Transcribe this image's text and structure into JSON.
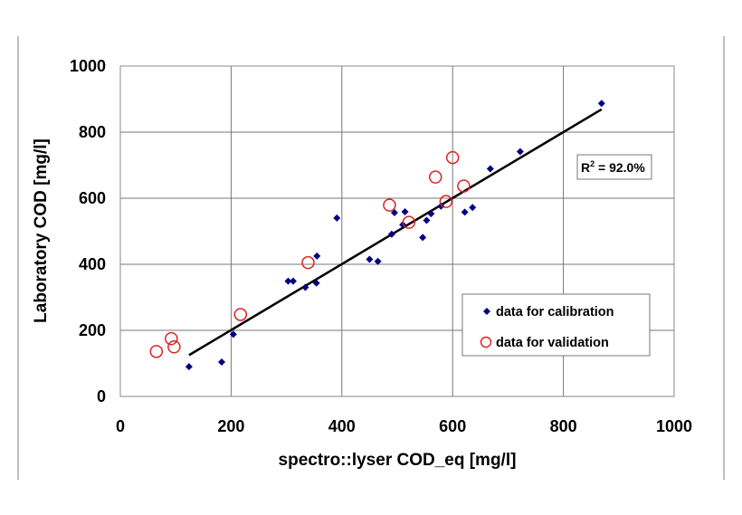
{
  "chart_data": {
    "type": "scatter",
    "title": "",
    "xlabel": "spectro::lyser COD_eq [mg/l]",
    "ylabel": "Laboratory COD [mg/l]",
    "xlim": [
      0,
      1000
    ],
    "ylim": [
      0,
      1000
    ],
    "xticks": [
      0,
      200,
      400,
      600,
      800,
      1000
    ],
    "yticks": [
      0,
      200,
      400,
      600,
      800,
      1000
    ],
    "grid": true,
    "legend_position": "bottom-right",
    "series": [
      {
        "name": "data for calibration",
        "marker": "diamond",
        "color": "#000080",
        "points": [
          [
            124,
            90
          ],
          [
            183,
            104
          ],
          [
            204,
            188
          ],
          [
            303,
            349
          ],
          [
            312,
            349
          ],
          [
            334,
            330
          ],
          [
            354,
            343
          ],
          [
            355,
            425
          ],
          [
            391,
            540
          ],
          [
            450,
            415
          ],
          [
            465,
            409
          ],
          [
            490,
            491
          ],
          [
            495,
            556
          ],
          [
            510,
            520
          ],
          [
            514,
            559
          ],
          [
            546,
            481
          ],
          [
            553,
            533
          ],
          [
            561,
            553
          ],
          [
            579,
            576
          ],
          [
            622,
            558
          ],
          [
            636,
            572
          ],
          [
            668,
            689
          ],
          [
            722,
            741
          ],
          [
            869,
            887
          ]
        ]
      },
      {
        "name": "data for validation",
        "marker": "open-circle",
        "color": "#e02020",
        "points": [
          [
            65,
            136
          ],
          [
            92,
            175
          ],
          [
            97,
            150
          ],
          [
            217,
            248
          ],
          [
            339,
            405
          ],
          [
            486,
            579
          ],
          [
            521,
            527
          ],
          [
            569,
            664
          ],
          [
            588,
            590
          ],
          [
            600,
            723
          ],
          [
            620,
            637
          ]
        ]
      }
    ],
    "trendline": {
      "color": "#000000",
      "from": [
        124,
        125
      ],
      "to": [
        869,
        869
      ]
    },
    "annotation": {
      "r2_label": "R",
      "r2_sup": "2",
      "r2_value": " = 92.0%"
    }
  }
}
